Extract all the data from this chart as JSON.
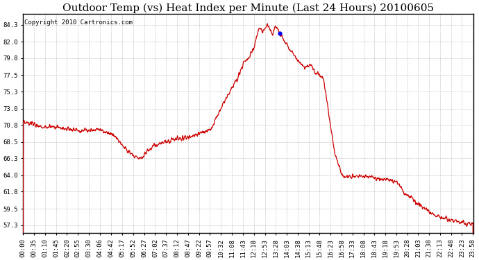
{
  "title": "Outdoor Temp (vs) Heat Index per Minute (Last 24 Hours) 20100605",
  "copyright": "Copyright 2010 Cartronics.com",
  "background_color": "#ffffff",
  "plot_bg_color": "#ffffff",
  "grid_color": "#bbbbbb",
  "line_color": "#cc0000",
  "blue_dot_color": "#0000ff",
  "yticks": [
    57.3,
    59.5,
    61.8,
    64.0,
    66.3,
    68.5,
    70.8,
    73.0,
    75.3,
    77.5,
    79.8,
    82.0,
    84.3
  ],
  "ylim": [
    56.2,
    85.8
  ],
  "xtick_labels": [
    "00:00",
    "00:35",
    "01:10",
    "01:45",
    "02:20",
    "02:55",
    "03:30",
    "04:06",
    "04:42",
    "05:17",
    "05:52",
    "06:27",
    "07:02",
    "07:37",
    "08:12",
    "08:47",
    "09:22",
    "09:57",
    "10:32",
    "11:08",
    "11:43",
    "12:18",
    "12:53",
    "13:28",
    "14:03",
    "14:38",
    "15:13",
    "15:48",
    "16:23",
    "16:58",
    "17:33",
    "18:08",
    "18:43",
    "19:18",
    "19:53",
    "20:28",
    "21:03",
    "21:38",
    "22:13",
    "22:48",
    "23:23",
    "23:58"
  ],
  "title_fontsize": 11,
  "copyright_fontsize": 6.5,
  "tick_fontsize": 6.5,
  "figwidth": 6.9,
  "figheight": 3.75,
  "dpi": 100
}
